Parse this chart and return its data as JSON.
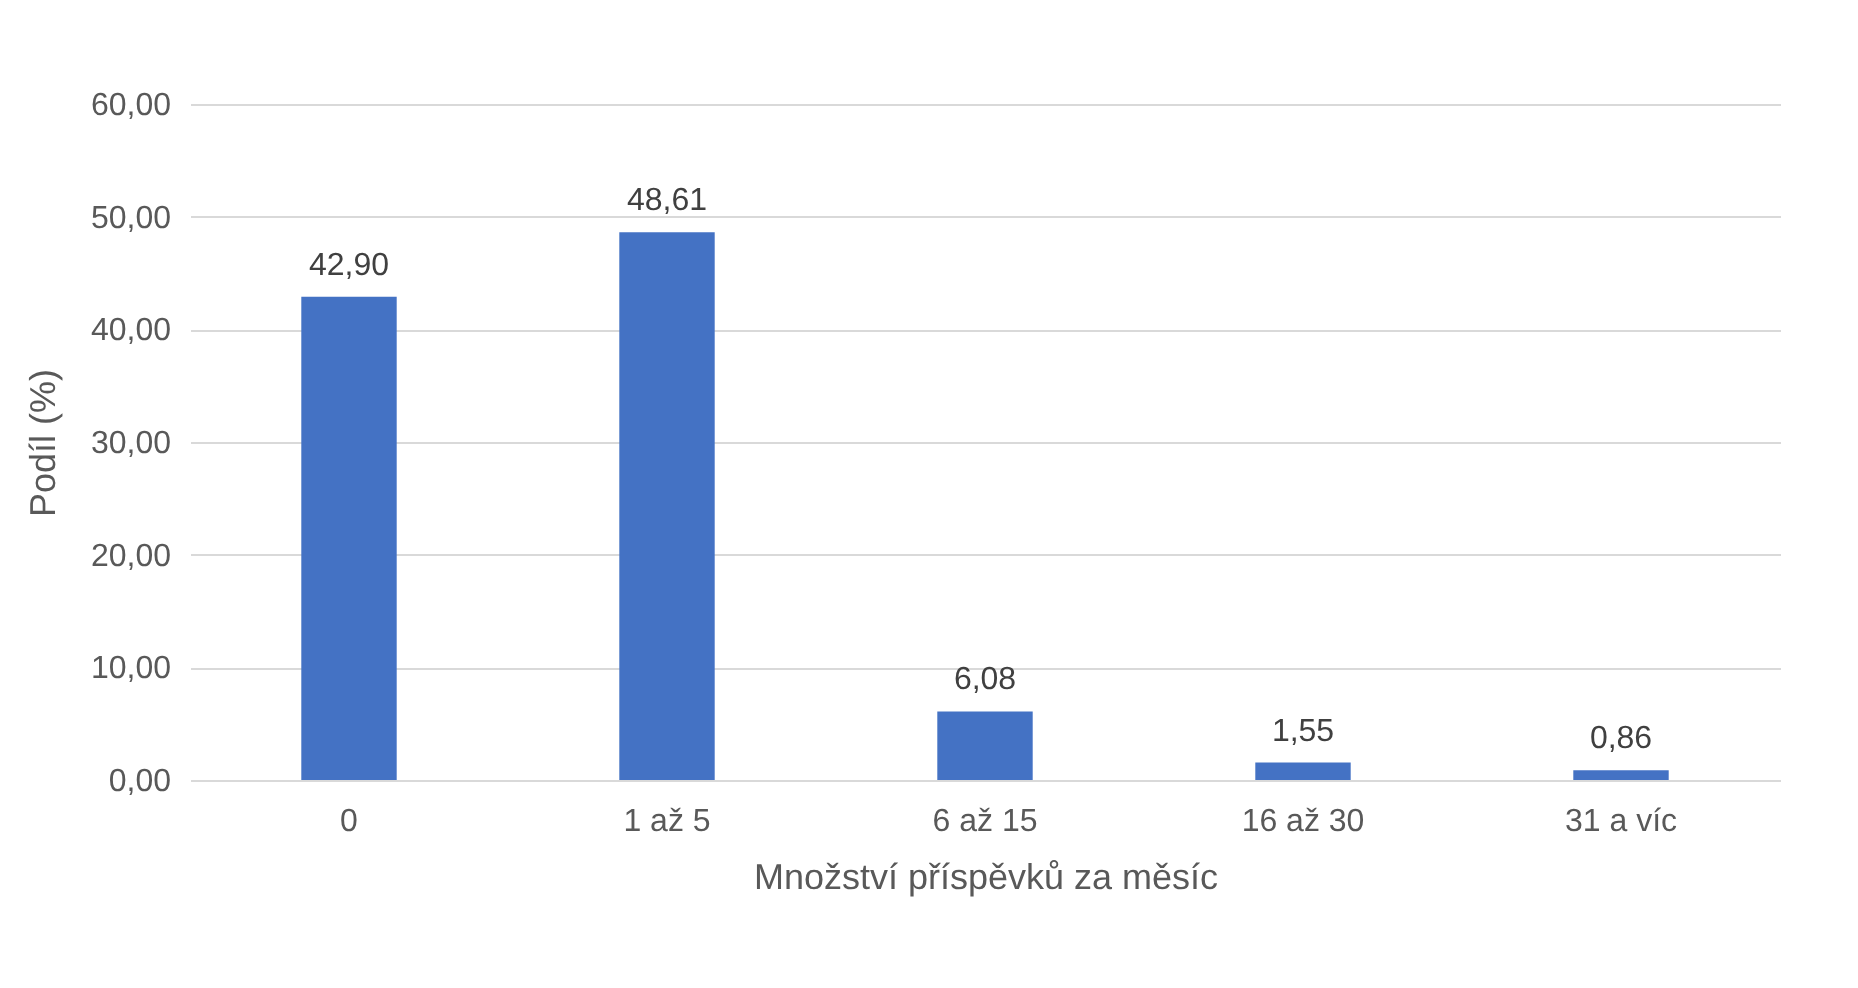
{
  "chart_data": {
    "type": "bar",
    "xlabel": "Množství příspěvků za měsíc",
    "ylabel": "Podíl (%)",
    "categories": [
      "0",
      "1 až 5",
      "6 až 15",
      "16 až 30",
      "31 a víc"
    ],
    "values": [
      42.9,
      48.61,
      6.08,
      1.55,
      0.86
    ],
    "value_labels": [
      "42,90",
      "48,61",
      "6,08",
      "1,55",
      "0,86"
    ],
    "color": "#4472c4",
    "ylim": [
      0,
      60
    ],
    "yticks": [
      {
        "value": 0,
        "label": "0,00"
      },
      {
        "value": 10,
        "label": "10,00"
      },
      {
        "value": 20,
        "label": "20,00"
      },
      {
        "value": 30,
        "label": "30,00"
      },
      {
        "value": 40,
        "label": "40,00"
      },
      {
        "value": 50,
        "label": "50,00"
      },
      {
        "value": 60,
        "label": "60,00"
      }
    ],
    "grid": "y"
  }
}
